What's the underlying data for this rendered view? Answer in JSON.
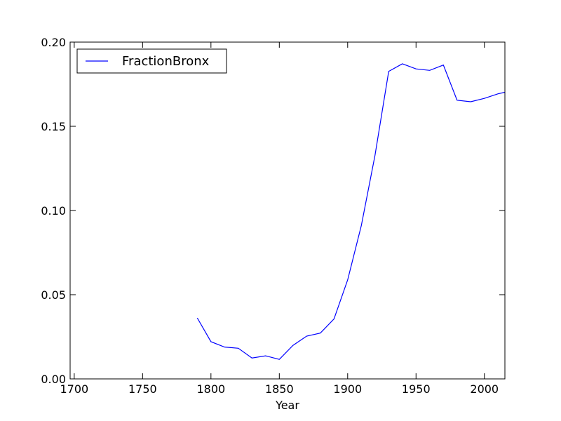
{
  "chart_data": {
    "type": "line",
    "title": "",
    "xlabel": "Year",
    "ylabel": "",
    "xlim": [
      1697,
      2015
    ],
    "ylim": [
      0.0,
      0.2
    ],
    "x_ticks": [
      1700,
      1750,
      1800,
      1850,
      1900,
      1950,
      2000
    ],
    "x_tick_labels": [
      "1700",
      "1750",
      "1800",
      "1850",
      "1900",
      "1950",
      "2000"
    ],
    "y_ticks": [
      0.0,
      0.05,
      0.1,
      0.15,
      0.2
    ],
    "y_tick_labels": [
      "0.00",
      "0.05",
      "0.10",
      "0.15",
      "0.20"
    ],
    "grid": false,
    "legend_position": "top-left",
    "series": [
      {
        "name": "FractionBronx",
        "color": "#0000ff",
        "x": [
          1790,
          1800,
          1810,
          1820,
          1830,
          1840,
          1850,
          1860,
          1870,
          1880,
          1890,
          1900,
          1910,
          1920,
          1930,
          1940,
          1950,
          1960,
          1970,
          1980,
          1990,
          2000,
          2010,
          2015
        ],
        "y": [
          0.0362,
          0.0221,
          0.0189,
          0.0182,
          0.0124,
          0.0137,
          0.0116,
          0.0199,
          0.0254,
          0.0272,
          0.0356,
          0.0588,
          0.0911,
          0.1328,
          0.1826,
          0.1871,
          0.1841,
          0.1832,
          0.1864,
          0.1655,
          0.1646,
          0.1666,
          0.1693,
          0.1702
        ]
      }
    ]
  }
}
